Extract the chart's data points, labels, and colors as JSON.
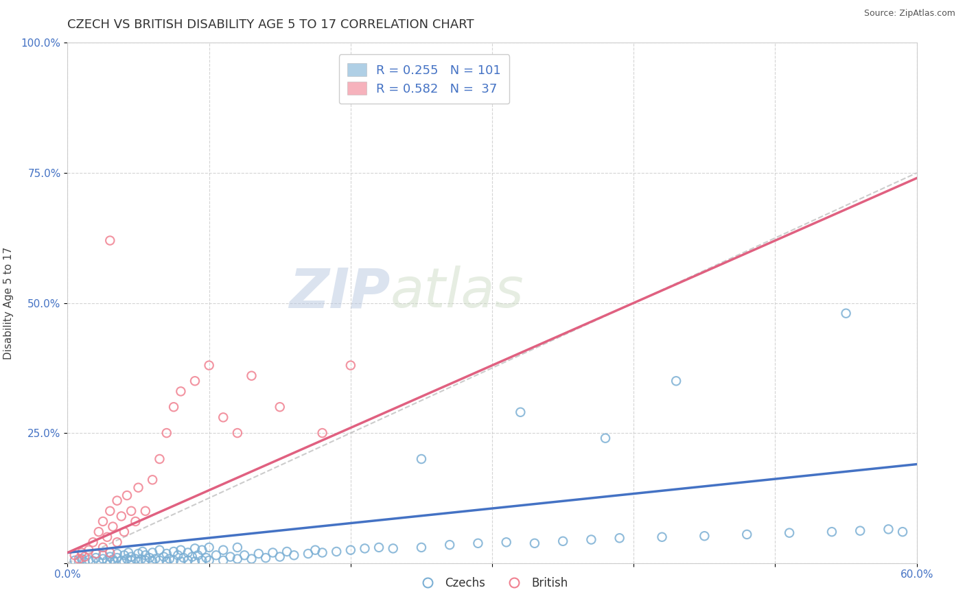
{
  "title": "CZECH VS BRITISH DISABILITY AGE 5 TO 17 CORRELATION CHART",
  "source_text": "Source: ZipAtlas.com",
  "ylabel": "Disability Age 5 to 17",
  "xlim": [
    0.0,
    0.6
  ],
  "ylim": [
    0.0,
    1.0
  ],
  "xticks": [
    0.0,
    0.1,
    0.2,
    0.3,
    0.4,
    0.5,
    0.6
  ],
  "xticklabels": [
    "0.0%",
    "",
    "",
    "",
    "",
    "",
    "60.0%"
  ],
  "yticks": [
    0.0,
    0.25,
    0.5,
    0.75,
    1.0
  ],
  "yticklabels": [
    "",
    "25.0%",
    "50.0%",
    "75.0%",
    "100.0%"
  ],
  "czech_color": "#7bafd4",
  "british_color": "#f08090",
  "czech_line_color": "#4472c4",
  "british_line_color": "#e06080",
  "czech_R": 0.255,
  "czech_N": 101,
  "british_R": 0.582,
  "british_N": 37,
  "legend_label_czech": "Czechs",
  "legend_label_british": "British",
  "watermark_zip": "ZIP",
  "watermark_atlas": "atlas",
  "background_color": "#ffffff",
  "grid_color": "#d0d0d0",
  "title_fontsize": 13,
  "axis_label_fontsize": 11,
  "tick_fontsize": 11,
  "ref_line_color": "#c0c0c0",
  "czech_scatter_x": [
    0.005,
    0.008,
    0.01,
    0.012,
    0.015,
    0.018,
    0.02,
    0.022,
    0.025,
    0.025,
    0.028,
    0.03,
    0.03,
    0.032,
    0.033,
    0.035,
    0.035,
    0.038,
    0.04,
    0.04,
    0.042,
    0.043,
    0.045,
    0.045,
    0.048,
    0.05,
    0.05,
    0.052,
    0.053,
    0.055,
    0.055,
    0.058,
    0.06,
    0.06,
    0.062,
    0.065,
    0.065,
    0.068,
    0.07,
    0.07,
    0.072,
    0.075,
    0.075,
    0.078,
    0.08,
    0.08,
    0.082,
    0.085,
    0.085,
    0.088,
    0.09,
    0.09,
    0.092,
    0.095,
    0.095,
    0.098,
    0.1,
    0.1,
    0.105,
    0.11,
    0.11,
    0.115,
    0.12,
    0.12,
    0.125,
    0.13,
    0.135,
    0.14,
    0.145,
    0.15,
    0.155,
    0.16,
    0.17,
    0.175,
    0.18,
    0.19,
    0.2,
    0.21,
    0.22,
    0.23,
    0.25,
    0.27,
    0.29,
    0.31,
    0.33,
    0.35,
    0.37,
    0.39,
    0.42,
    0.45,
    0.48,
    0.51,
    0.54,
    0.56,
    0.58,
    0.59,
    0.55,
    0.38,
    0.32,
    0.25,
    0.43
  ],
  "czech_scatter_y": [
    0.005,
    0.003,
    0.008,
    0.002,
    0.006,
    0.004,
    0.01,
    0.003,
    0.008,
    0.015,
    0.005,
    0.002,
    0.012,
    0.007,
    0.003,
    0.01,
    0.018,
    0.005,
    0.003,
    0.015,
    0.008,
    0.02,
    0.005,
    0.012,
    0.008,
    0.003,
    0.018,
    0.007,
    0.022,
    0.005,
    0.015,
    0.01,
    0.003,
    0.02,
    0.008,
    0.005,
    0.025,
    0.012,
    0.003,
    0.018,
    0.008,
    0.005,
    0.022,
    0.015,
    0.003,
    0.025,
    0.01,
    0.005,
    0.02,
    0.012,
    0.003,
    0.028,
    0.015,
    0.005,
    0.025,
    0.01,
    0.005,
    0.03,
    0.015,
    0.005,
    0.025,
    0.012,
    0.008,
    0.03,
    0.015,
    0.008,
    0.018,
    0.01,
    0.02,
    0.012,
    0.022,
    0.015,
    0.018,
    0.025,
    0.02,
    0.022,
    0.025,
    0.028,
    0.03,
    0.028,
    0.03,
    0.035,
    0.038,
    0.04,
    0.038,
    0.042,
    0.045,
    0.048,
    0.05,
    0.052,
    0.055,
    0.058,
    0.06,
    0.062,
    0.065,
    0.06,
    0.48,
    0.24,
    0.29,
    0.2,
    0.35
  ],
  "british_scatter_x": [
    0.005,
    0.008,
    0.01,
    0.012,
    0.015,
    0.018,
    0.02,
    0.022,
    0.025,
    0.025,
    0.028,
    0.03,
    0.03,
    0.032,
    0.035,
    0.035,
    0.038,
    0.04,
    0.042,
    0.045,
    0.048,
    0.05,
    0.055,
    0.06,
    0.065,
    0.07,
    0.075,
    0.08,
    0.09,
    0.1,
    0.11,
    0.12,
    0.13,
    0.15,
    0.18,
    0.2,
    0.03
  ],
  "british_scatter_y": [
    0.015,
    0.008,
    0.02,
    0.012,
    0.025,
    0.04,
    0.018,
    0.06,
    0.03,
    0.08,
    0.05,
    0.02,
    0.1,
    0.07,
    0.04,
    0.12,
    0.09,
    0.06,
    0.13,
    0.1,
    0.08,
    0.145,
    0.1,
    0.16,
    0.2,
    0.25,
    0.3,
    0.33,
    0.35,
    0.38,
    0.28,
    0.25,
    0.36,
    0.3,
    0.25,
    0.38,
    0.62
  ]
}
